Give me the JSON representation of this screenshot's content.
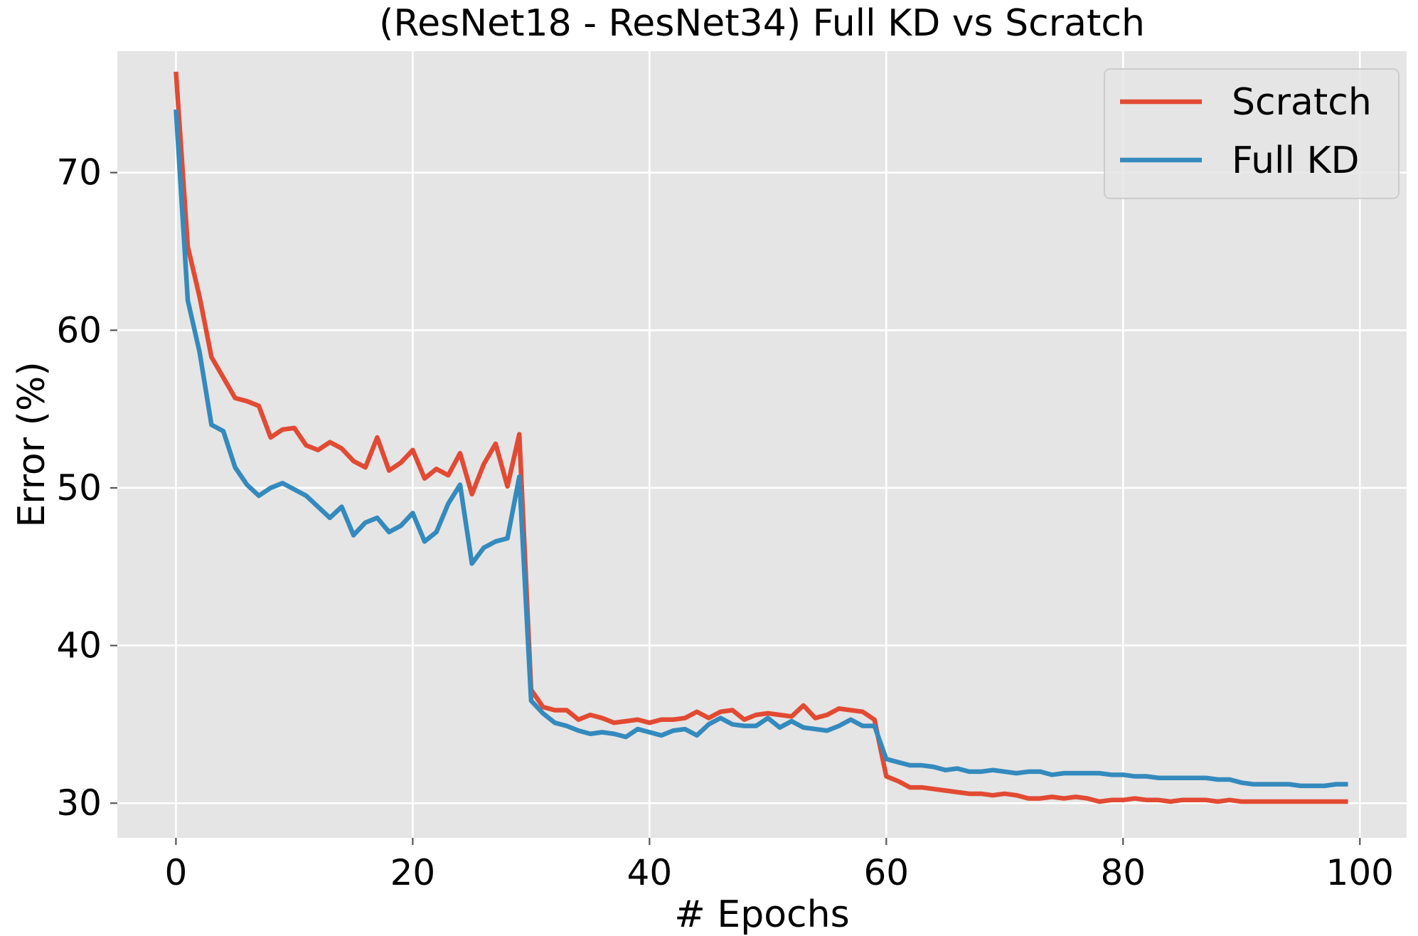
{
  "chart_data": {
    "type": "line",
    "title": "(ResNet18 - ResNet34) Full KD vs Scratch",
    "xlabel": "# Epochs",
    "ylabel": "Error (%)",
    "xlim": [
      -4.95,
      103.95
    ],
    "ylim": [
      27.8,
      77.7
    ],
    "xticks": [
      0,
      20,
      40,
      60,
      80,
      100
    ],
    "yticks": [
      30,
      40,
      50,
      60,
      70
    ],
    "grid": true,
    "legend_position": "top-right",
    "x": [
      0,
      1,
      2,
      3,
      4,
      5,
      6,
      7,
      8,
      9,
      10,
      11,
      12,
      13,
      14,
      15,
      16,
      17,
      18,
      19,
      20,
      21,
      22,
      23,
      24,
      25,
      26,
      27,
      28,
      29,
      30,
      31,
      32,
      33,
      34,
      35,
      36,
      37,
      38,
      39,
      40,
      41,
      42,
      43,
      44,
      45,
      46,
      47,
      48,
      49,
      50,
      51,
      52,
      53,
      54,
      55,
      56,
      57,
      58,
      59,
      60,
      61,
      62,
      63,
      64,
      65,
      66,
      67,
      68,
      69,
      70,
      71,
      72,
      73,
      74,
      75,
      76,
      77,
      78,
      79,
      80,
      81,
      82,
      83,
      84,
      85,
      86,
      87,
      88,
      89,
      90,
      91,
      92,
      93,
      94,
      95,
      96,
      97,
      98,
      99
    ],
    "series": [
      {
        "name": "Scratch",
        "color": "#E24A33",
        "values": [
          76.4,
          65.3,
          62.1,
          58.3,
          57.0,
          55.7,
          55.5,
          55.2,
          53.2,
          53.7,
          53.8,
          52.7,
          52.4,
          52.9,
          52.5,
          51.7,
          51.3,
          53.2,
          51.1,
          51.6,
          52.4,
          50.6,
          51.2,
          50.8,
          52.2,
          49.6,
          51.5,
          52.8,
          50.1,
          53.4,
          37.2,
          36.1,
          35.9,
          35.9,
          35.3,
          35.6,
          35.4,
          35.1,
          35.2,
          35.3,
          35.1,
          35.3,
          35.3,
          35.4,
          35.8,
          35.4,
          35.8,
          35.9,
          35.3,
          35.6,
          35.7,
          35.6,
          35.5,
          36.2,
          35.4,
          35.6,
          36.0,
          35.9,
          35.8,
          35.3,
          31.7,
          31.4,
          31.0,
          31.0,
          30.9,
          30.8,
          30.7,
          30.6,
          30.6,
          30.5,
          30.6,
          30.5,
          30.3,
          30.3,
          30.4,
          30.3,
          30.4,
          30.3,
          30.1,
          30.2,
          30.2,
          30.3,
          30.2,
          30.2,
          30.1,
          30.2,
          30.2,
          30.2,
          30.1,
          30.2,
          30.1,
          30.1,
          30.1,
          30.1,
          30.1,
          30.1,
          30.1,
          30.1,
          30.1,
          30.1
        ]
      },
      {
        "name": "Full KD",
        "color": "#348ABD",
        "values": [
          74.0,
          61.9,
          58.6,
          54.0,
          53.6,
          51.3,
          50.2,
          49.5,
          50.0,
          50.3,
          49.9,
          49.5,
          48.8,
          48.1,
          48.8,
          47.0,
          47.8,
          48.1,
          47.2,
          47.6,
          48.4,
          46.6,
          47.2,
          49.0,
          50.2,
          45.2,
          46.2,
          46.6,
          46.8,
          50.7,
          36.5,
          35.7,
          35.1,
          34.9,
          34.6,
          34.4,
          34.5,
          34.4,
          34.2,
          34.7,
          34.5,
          34.3,
          34.6,
          34.7,
          34.3,
          35.0,
          35.4,
          35.0,
          34.9,
          34.9,
          35.4,
          34.8,
          35.2,
          34.8,
          34.7,
          34.6,
          34.9,
          35.3,
          34.9,
          34.9,
          32.8,
          32.6,
          32.4,
          32.4,
          32.3,
          32.1,
          32.2,
          32.0,
          32.0,
          32.1,
          32.0,
          31.9,
          32.0,
          32.0,
          31.8,
          31.9,
          31.9,
          31.9,
          31.9,
          31.8,
          31.8,
          31.7,
          31.7,
          31.6,
          31.6,
          31.6,
          31.6,
          31.6,
          31.5,
          31.5,
          31.3,
          31.2,
          31.2,
          31.2,
          31.2,
          31.1,
          31.1,
          31.1,
          31.2,
          31.2
        ]
      }
    ]
  }
}
